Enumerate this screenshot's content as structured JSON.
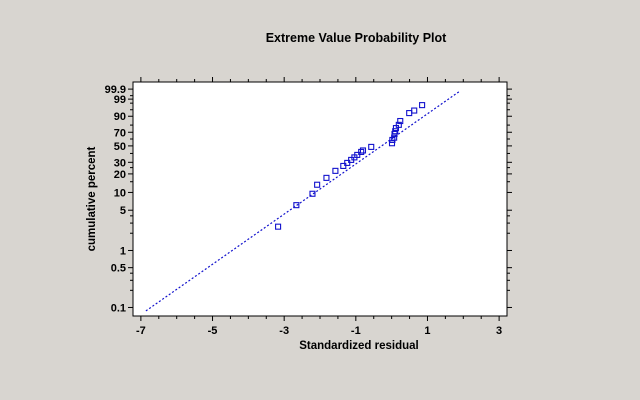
{
  "chart_data": {
    "type": "scatter",
    "title": "Extreme Value Probability Plot",
    "xlabel": "Standardized residual",
    "ylabel": "cumulative percent",
    "legend": null,
    "grid": false,
    "colors": {
      "background": "#d8d5d0",
      "plot_background": "#ffffff",
      "series": "#1212cd",
      "axis": "#000000",
      "text": "#000000"
    },
    "x_axis": {
      "range": [
        -7.22,
        3.22
      ],
      "major_ticks": [
        -7,
        -5,
        -3,
        -1,
        1,
        3
      ],
      "major_labels": [
        "-7",
        "-5",
        "-3",
        "-1",
        "1",
        "3"
      ],
      "minor_step": 0.5
    },
    "y_axis": {
      "scale": "extreme-value-percent",
      "range_percent": [
        0.0708,
        99.99
      ],
      "labeled_values": [
        99.9,
        99,
        90,
        70,
        50,
        30,
        20,
        10,
        5,
        1,
        0.5,
        0.1
      ],
      "labeled_ticks": [
        "99.9",
        "99",
        "90",
        "70",
        "50",
        "30",
        "20",
        "10",
        "5",
        "1",
        "0.5",
        "0.1"
      ],
      "minor_ticks": [
        99.5,
        98,
        95,
        80,
        60,
        40,
        25,
        15,
        4,
        3,
        2,
        0.4,
        0.3,
        0.2
      ]
    },
    "points": {
      "x": [
        -3.17,
        -2.66,
        -2.21,
        -2.08,
        -1.82,
        -1.57,
        -1.35,
        -1.24,
        -1.13,
        -1.04,
        -0.96,
        -0.85,
        -0.8,
        -0.57,
        0.01,
        0.02,
        0.07,
        0.08,
        0.1,
        0.12,
        0.2,
        0.24,
        0.49,
        0.63,
        0.85
      ],
      "percent": [
        2.6,
        6.1,
        9.5,
        13.4,
        17.3,
        22.3,
        26.5,
        29.4,
        32.5,
        35.3,
        38.2,
        41.9,
        43.8,
        48.6,
        53.8,
        58.6,
        62.0,
        67.5,
        71.5,
        76.0,
        80.3,
        85.0,
        92.7,
        94.5,
        97.3
      ]
    },
    "fit_line": {
      "x": [
        -6.86,
        1.88
      ],
      "percent": [
        0.087,
        99.8
      ],
      "style": "dotted"
    }
  }
}
